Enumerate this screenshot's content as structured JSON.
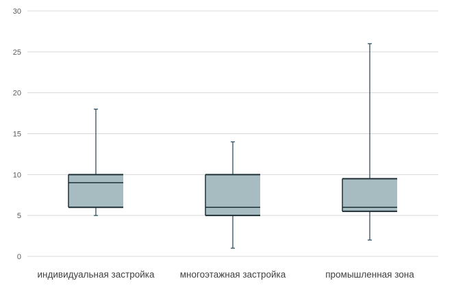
{
  "chart_data": {
    "type": "boxplot",
    "title": "",
    "xlabel": "",
    "ylabel": "",
    "ylim": [
      0,
      30
    ],
    "yticks": [
      0,
      5,
      10,
      15,
      20,
      25,
      30
    ],
    "ytick_labels": [
      "0",
      "5",
      "10",
      "15",
      "20",
      "25",
      "30"
    ],
    "grid": true,
    "categories": [
      "индивидуальная застройка",
      "многоэтажная застройка",
      "промышленная зона"
    ],
    "boxes": [
      {
        "category": "индивидуальная застройка",
        "min": 5,
        "q1": 6,
        "median": 9,
        "q3": 10,
        "max": 18
      },
      {
        "category": "многоэтажная застройка",
        "min": 1,
        "q1": 5,
        "median": 6,
        "q3": 10,
        "max": 14
      },
      {
        "category": "промышленная зона",
        "min": 2,
        "q1": 5.5,
        "median": 6,
        "q3": 9.5,
        "max": 26
      }
    ],
    "colors": {
      "box_fill": "#a6bcc0",
      "box_stroke": "#1f2f36",
      "whisker": "#2f4f5f",
      "grid": "#d9d9d9"
    }
  }
}
